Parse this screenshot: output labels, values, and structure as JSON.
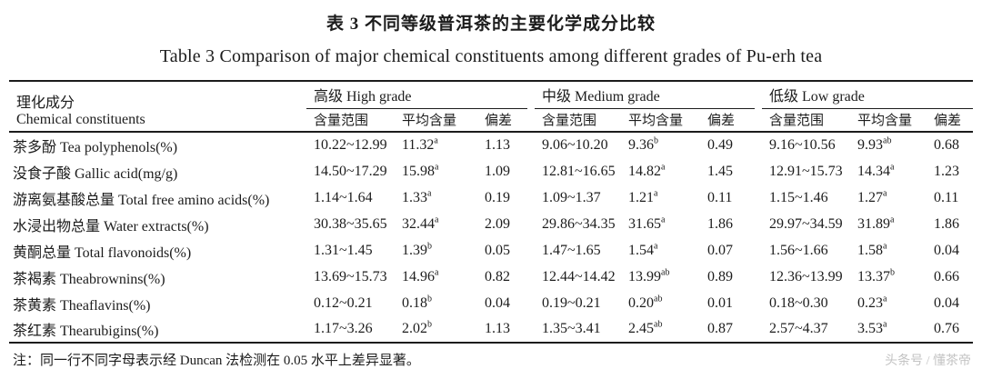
{
  "titles": {
    "zh": "表 3 不同等级普洱茶的主要化学成分比较",
    "en": "Table 3 Comparison of major chemical constituents among different grades of Pu-erh tea"
  },
  "table": {
    "header": {
      "label_zh": "理化成分",
      "label_en": "Chemical constituents",
      "groups": [
        "高级 High grade",
        "中级 Medium grade",
        "低级 Low grade"
      ],
      "sub": [
        "含量范围",
        "平均含量",
        "偏差"
      ]
    },
    "rows": [
      {
        "zh": "茶多酚",
        "en": "Tea polyphenols(%)",
        "groups": [
          {
            "range": "10.22~12.99",
            "mean": "11.32",
            "sup": "a",
            "dev": "1.13"
          },
          {
            "range": "9.06~10.20",
            "mean": "9.36",
            "sup": "b",
            "dev": "0.49"
          },
          {
            "range": "9.16~10.56",
            "mean": "9.93",
            "sup": "ab",
            "dev": "0.68"
          }
        ]
      },
      {
        "zh": "没食子酸",
        "en": "Gallic acid(mg/g)",
        "groups": [
          {
            "range": "14.50~17.29",
            "mean": "15.98",
            "sup": "a",
            "dev": "1.09"
          },
          {
            "range": "12.81~16.65",
            "mean": "14.82",
            "sup": "a",
            "dev": "1.45"
          },
          {
            "range": "12.91~15.73",
            "mean": "14.34",
            "sup": "a",
            "dev": "1.23"
          }
        ]
      },
      {
        "zh": "游离氨基酸总量",
        "en": "Total free amino acids(%)",
        "groups": [
          {
            "range": "1.14~1.64",
            "mean": "1.33",
            "sup": "a",
            "dev": "0.19"
          },
          {
            "range": "1.09~1.37",
            "mean": "1.21",
            "sup": "a",
            "dev": "0.11"
          },
          {
            "range": "1.15~1.46",
            "mean": "1.27",
            "sup": "a",
            "dev": "0.11"
          }
        ]
      },
      {
        "zh": "水浸出物总量",
        "en": "Water extracts(%)",
        "groups": [
          {
            "range": "30.38~35.65",
            "mean": "32.44",
            "sup": "a",
            "dev": "2.09"
          },
          {
            "range": "29.86~34.35",
            "mean": "31.65",
            "sup": "a",
            "dev": "1.86"
          },
          {
            "range": "29.97~34.59",
            "mean": "31.89",
            "sup": "a",
            "dev": "1.86"
          }
        ]
      },
      {
        "zh": "黄酮总量",
        "en": "Total flavonoids(%)",
        "groups": [
          {
            "range": "1.31~1.45",
            "mean": "1.39",
            "sup": "b",
            "dev": "0.05"
          },
          {
            "range": "1.47~1.65",
            "mean": "1.54",
            "sup": "a",
            "dev": "0.07"
          },
          {
            "range": "1.56~1.66",
            "mean": "1.58",
            "sup": "a",
            "dev": "0.04"
          }
        ]
      },
      {
        "zh": "茶褐素",
        "en": "Theabrownins(%)",
        "groups": [
          {
            "range": "13.69~15.73",
            "mean": "14.96",
            "sup": "a",
            "dev": "0.82"
          },
          {
            "range": "12.44~14.42",
            "mean": "13.99",
            "sup": "ab",
            "dev": "0.89"
          },
          {
            "range": "12.36~13.99",
            "mean": "13.37",
            "sup": "b",
            "dev": "0.66"
          }
        ]
      },
      {
        "zh": "茶黄素",
        "en": "Theaflavins(%)",
        "groups": [
          {
            "range": "0.12~0.21",
            "mean": "0.18",
            "sup": "b",
            "dev": "0.04"
          },
          {
            "range": "0.19~0.21",
            "mean": "0.20",
            "sup": "ab",
            "dev": "0.01"
          },
          {
            "range": "0.18~0.30",
            "mean": "0.23",
            "sup": "a",
            "dev": "0.04"
          }
        ]
      },
      {
        "zh": "茶红素",
        "en": "Thearubigins(%)",
        "groups": [
          {
            "range": "1.17~3.26",
            "mean": "2.02",
            "sup": "b",
            "dev": "1.13"
          },
          {
            "range": "1.35~3.41",
            "mean": "2.45",
            "sup": "ab",
            "dev": "0.87"
          },
          {
            "range": "2.57~4.37",
            "mean": "3.53",
            "sup": "a",
            "dev": "0.76"
          }
        ]
      }
    ]
  },
  "footnote": "注：同一行不同字母表示经 Duncan 法检测在 0.05 水平上差异显著。",
  "watermark": "头条号 / 懂茶帝",
  "colors": {
    "text": "#1c1c1c",
    "rule": "#1c1c1c",
    "watermark": "#c3c3c3"
  }
}
